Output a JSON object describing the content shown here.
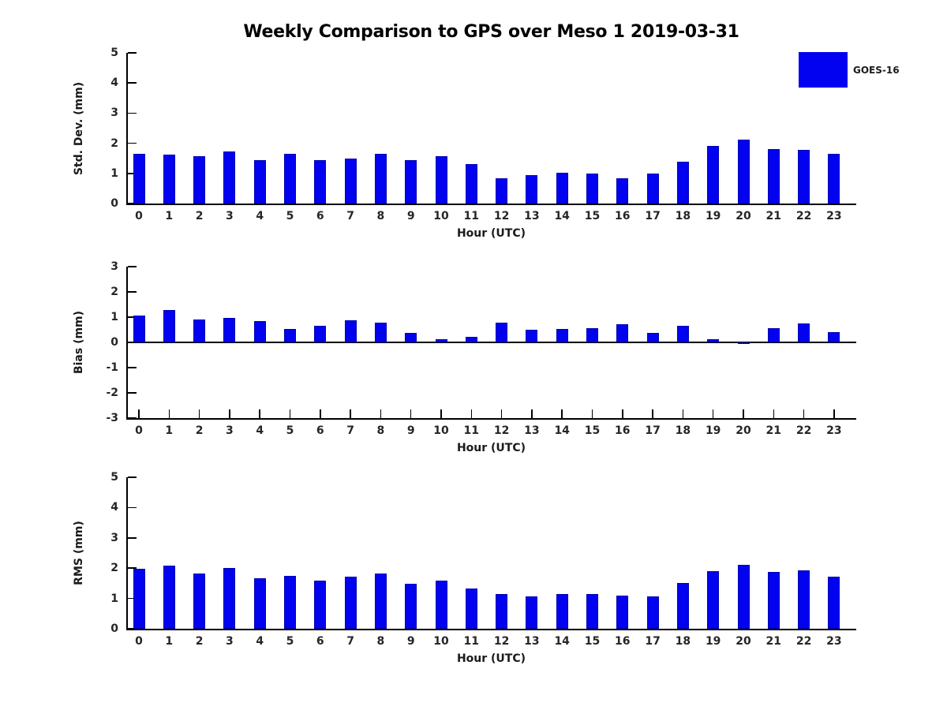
{
  "title": "Weekly Comparison to GPS over Meso 1 2019-03-31",
  "legend": {
    "label": "GOES-16",
    "color": "#0202f0"
  },
  "colors": {
    "bar": "#0202f0",
    "bar_edge": "#0000b4",
    "axis": "#000000",
    "text": "#262626"
  },
  "chart_data": [
    {
      "type": "bar",
      "ylabel": "Std. Dev. (mm)",
      "xlabel": "Hour (UTC)",
      "ylim": [
        0,
        5
      ],
      "yticks": [
        0,
        1,
        2,
        3,
        4,
        5
      ],
      "grid": false,
      "legend_position": "upper right outside",
      "categories": [
        "0",
        "1",
        "2",
        "3",
        "4",
        "5",
        "6",
        "7",
        "8",
        "9",
        "10",
        "11",
        "12",
        "13",
        "14",
        "15",
        "16",
        "17",
        "18",
        "19",
        "20",
        "21",
        "22",
        "23"
      ],
      "series": [
        {
          "name": "GOES-16",
          "values": [
            1.65,
            1.62,
            1.56,
            1.74,
            1.43,
            1.64,
            1.43,
            1.48,
            1.64,
            1.43,
            1.56,
            1.32,
            0.84,
            0.95,
            1.03,
            1.0,
            0.84,
            1.0,
            1.38,
            1.92,
            2.12,
            1.8,
            1.78,
            1.65
          ]
        }
      ]
    },
    {
      "type": "bar",
      "ylabel": "Bias (mm)",
      "xlabel": "Hour (UTC)",
      "ylim": [
        -3,
        3
      ],
      "yticks": [
        -3,
        -2,
        -1,
        0,
        1,
        2,
        3
      ],
      "grid": false,
      "zero_line": true,
      "categories": [
        "0",
        "1",
        "2",
        "3",
        "4",
        "5",
        "6",
        "7",
        "8",
        "9",
        "10",
        "11",
        "12",
        "13",
        "14",
        "15",
        "16",
        "17",
        "18",
        "19",
        "20",
        "21",
        "22",
        "23"
      ],
      "series": [
        {
          "name": "GOES-16",
          "values": [
            1.05,
            1.28,
            0.92,
            0.97,
            0.85,
            0.53,
            0.65,
            0.88,
            0.78,
            0.38,
            0.12,
            0.21,
            0.79,
            0.49,
            0.52,
            0.55,
            0.72,
            0.39,
            0.67,
            0.14,
            -0.07,
            0.56,
            0.75,
            0.4
          ]
        }
      ]
    },
    {
      "type": "bar",
      "ylabel": "RMS (mm)",
      "xlabel": "Hour (UTC)",
      "ylim": [
        0,
        5
      ],
      "yticks": [
        0,
        1,
        2,
        3,
        4,
        5
      ],
      "grid": false,
      "categories": [
        "0",
        "1",
        "2",
        "3",
        "4",
        "5",
        "6",
        "7",
        "8",
        "9",
        "10",
        "11",
        "12",
        "13",
        "14",
        "15",
        "16",
        "17",
        "18",
        "19",
        "20",
        "21",
        "22",
        "23"
      ],
      "series": [
        {
          "name": "GOES-16",
          "values": [
            1.97,
            2.08,
            1.82,
            2.0,
            1.66,
            1.74,
            1.58,
            1.71,
            1.82,
            1.48,
            1.58,
            1.34,
            1.14,
            1.06,
            1.14,
            1.14,
            1.09,
            1.06,
            1.52,
            1.9,
            2.11,
            1.88,
            1.92,
            1.71
          ]
        }
      ]
    }
  ]
}
